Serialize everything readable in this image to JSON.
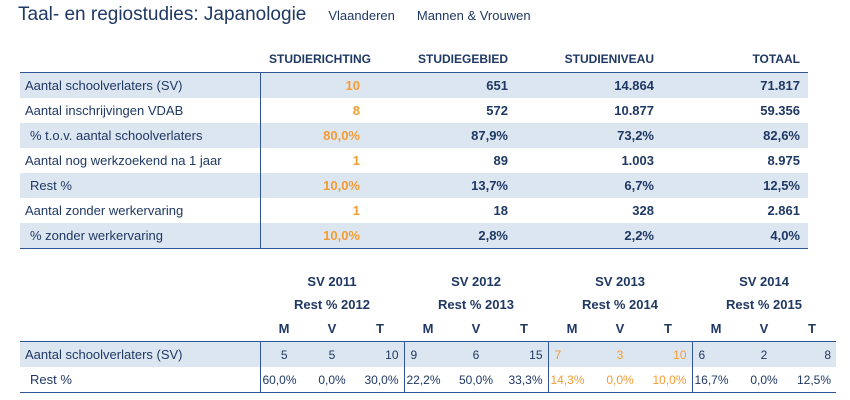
{
  "header": {
    "title": "Taal- en regiostudies: Japanologie",
    "region": "Vlaanderen",
    "gender": "Mannen & Vrouwen"
  },
  "table1": {
    "columns": [
      "STUDIERICHTING",
      "STUDIEGEBIED",
      "STUDIENIVEAU",
      "TOTAAL"
    ],
    "rows": [
      {
        "label": "Aantal schoolverlaters (SV)",
        "values": [
          "10",
          "651",
          "14.864",
          "71.817"
        ]
      },
      {
        "label": "Aantal inschrijvingen VDAB",
        "values": [
          "8",
          "572",
          "10.877",
          "59.356"
        ]
      },
      {
        "label": "% t.o.v. aantal schoolverlaters",
        "values": [
          "80,0%",
          "87,9%",
          "73,2%",
          "82,6%"
        ]
      },
      {
        "label": "Aantal nog werkzoekend na 1 jaar",
        "values": [
          "1",
          "89",
          "1.003",
          "8.975"
        ]
      },
      {
        "label": "Rest %",
        "values": [
          "10,0%",
          "13,7%",
          "6,7%",
          "12,5%"
        ]
      },
      {
        "label": "Aantal zonder werkervaring",
        "values": [
          "1",
          "18",
          "328",
          "2.861"
        ]
      },
      {
        "label": "% zonder werkervaring",
        "values": [
          "10,0%",
          "2,8%",
          "2,2%",
          "4,0%"
        ]
      }
    ]
  },
  "table2": {
    "groups": [
      {
        "year": "SV 2011",
        "rest": "Rest % 2012"
      },
      {
        "year": "SV 2012",
        "rest": "Rest % 2013"
      },
      {
        "year": "SV 2013",
        "rest": "Rest % 2014"
      },
      {
        "year": "SV 2014",
        "rest": "Rest % 2015"
      }
    ],
    "subcols": [
      "M",
      "V",
      "T"
    ],
    "rows": [
      {
        "label": "Aantal schoolverlaters (SV)",
        "values": [
          "5",
          "5",
          "10",
          "9",
          "6",
          "15",
          "7",
          "3",
          "10",
          "6",
          "2",
          "8"
        ]
      },
      {
        "label": "Rest %",
        "values": [
          "60,0%",
          "0,0%",
          "30,0%",
          "22,2%",
          "50,0%",
          "33,3%",
          "14,3%",
          "0,0%",
          "10,0%",
          "16,7%",
          "0,0%",
          "12,5%"
        ]
      }
    ]
  },
  "colors": {
    "text": "#1f3864",
    "highlight": "#f39c34",
    "row_shade": "#dce6f1",
    "border": "#2f5597"
  }
}
